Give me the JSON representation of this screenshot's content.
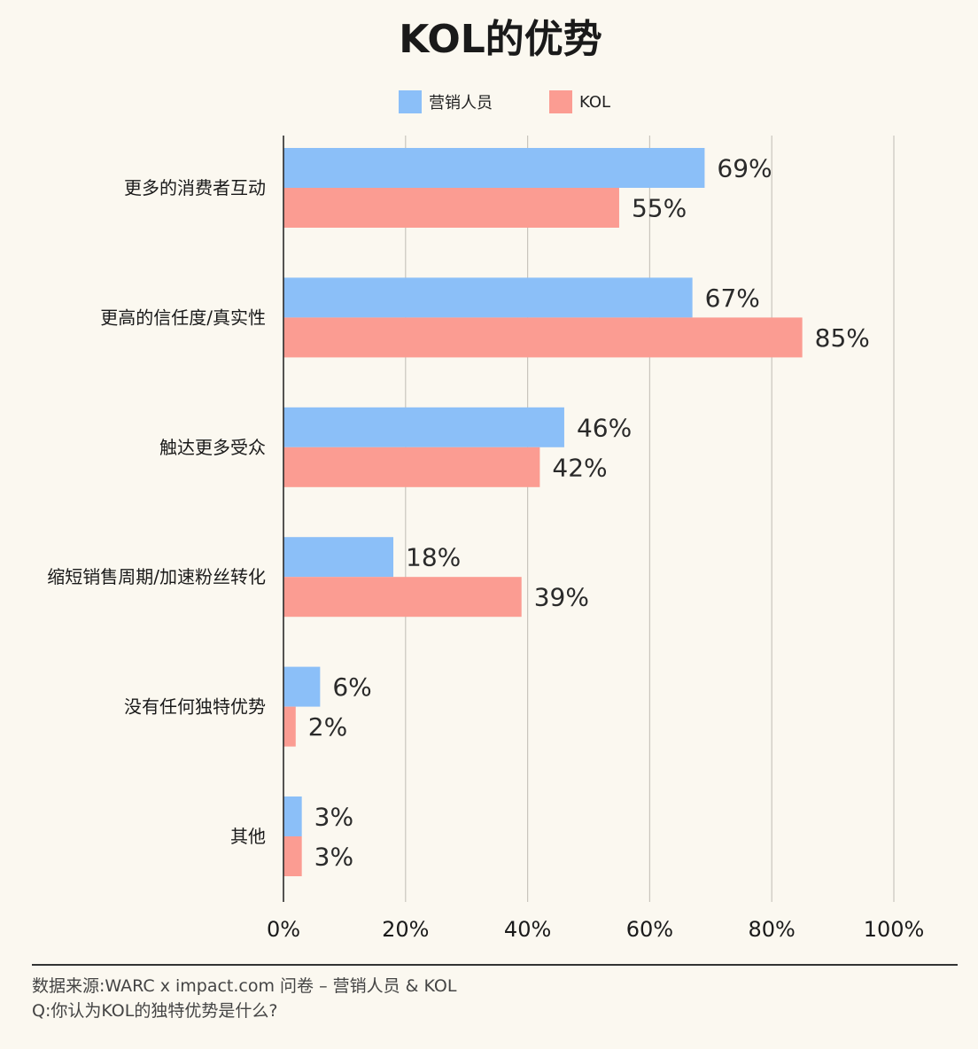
{
  "chart_data": {
    "type": "bar",
    "orientation": "horizontal",
    "title": "KOL的优势",
    "categories": [
      "更多的消费者互动",
      "更高的信任度/真实性",
      "触达更多受众",
      "缩短销售周期/加速粉丝转化",
      "没有任何独特优势",
      "其他"
    ],
    "series": [
      {
        "name": "营销人员",
        "values": [
          69,
          67,
          46,
          18,
          6,
          3
        ],
        "color": "#8bbff8"
      },
      {
        "name": "KOL",
        "values": [
          55,
          85,
          42,
          39,
          2,
          3
        ],
        "color": "#fb9c92"
      }
    ],
    "value_suffix": "%",
    "xlim": [
      0,
      100
    ],
    "x_ticks": [
      0,
      20,
      40,
      60,
      80,
      100
    ],
    "x_tick_labels": [
      "0%",
      "20%",
      "40%",
      "60%",
      "80%",
      "100%"
    ],
    "grid": true,
    "legend_position": "top-center"
  },
  "footer": {
    "source": "数据来源:WARC x impact.com 问卷 – 营销人员 & KOL",
    "question": "Q:你认为KOL的独特优势是什么?"
  }
}
